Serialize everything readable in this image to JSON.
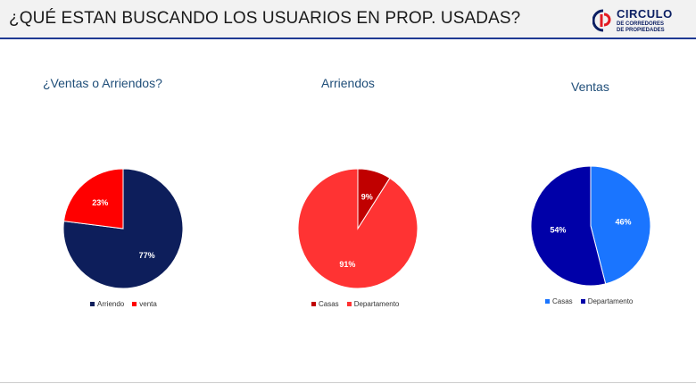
{
  "header": {
    "title": "¿QUÉ ESTAN BUSCANDO LOS USUARIOS EN PROP. USADAS?",
    "logo_name": "CIRCULO",
    "logo_sub_1": "DE CORREDORES",
    "logo_sub_2": "DE PROPIEDADES"
  },
  "colors": {
    "navy": "#0d1e5b",
    "red": "#ff0000",
    "dark_red": "#c00000",
    "light_red": "#ff3333",
    "blue": "#1a75ff",
    "dark_blue": "#0000a8",
    "title_blue": "#1f4e79"
  },
  "chart_data": [
    {
      "type": "pie",
      "title": "¿Ventas o Arriendos?",
      "series": [
        {
          "name": "Arriendo",
          "value": 77,
          "label": "77%",
          "color": "#0d1e5b"
        },
        {
          "name": "venta",
          "value": 23,
          "label": "23%",
          "color": "#ff0000"
        }
      ],
      "legend_position": "bottom"
    },
    {
      "type": "pie",
      "title": "Arriendos",
      "series": [
        {
          "name": "Casas",
          "value": 9,
          "label": "9%",
          "color": "#c00000"
        },
        {
          "name": "Departamento",
          "value": 91,
          "label": "91%",
          "color": "#ff3333"
        }
      ],
      "legend_position": "bottom"
    },
    {
      "type": "pie",
      "title": "Ventas",
      "series": [
        {
          "name": "Casas",
          "value": 46,
          "label": "46%",
          "color": "#1a75ff"
        },
        {
          "name": "Departamento",
          "value": 54,
          "label": "54%",
          "color": "#0000a8"
        }
      ],
      "legend_position": "bottom"
    }
  ]
}
